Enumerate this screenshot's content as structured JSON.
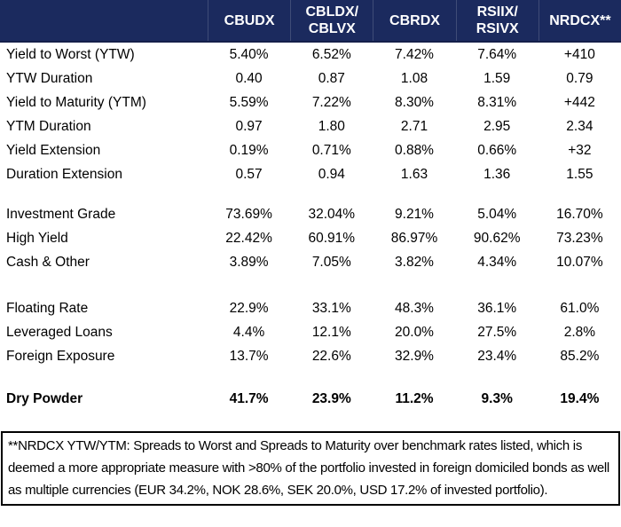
{
  "colors": {
    "header_bg": "#1B2A5E",
    "header_text": "#FFFFFF",
    "body_text": "#000000",
    "footnote_border": "#000000"
  },
  "table": {
    "columns": [
      {
        "line1": "CBUDX",
        "line2": ""
      },
      {
        "line1": "CBLDX/",
        "line2": "CBLVX"
      },
      {
        "line1": "CBRDX",
        "line2": ""
      },
      {
        "line1": "RSIIX/",
        "line2": "RSIVX"
      },
      {
        "line1": "NRDCX**",
        "line2": ""
      }
    ],
    "rows": [
      {
        "label": "Yield to Worst (YTW)",
        "values": [
          "5.40%",
          "6.52%",
          "7.42%",
          "7.64%",
          "+410"
        ]
      },
      {
        "label": "YTW Duration",
        "values": [
          "0.40",
          "0.87",
          "1.08",
          "1.59",
          "0.79"
        ]
      },
      {
        "label": "Yield to Maturity (YTM)",
        "values": [
          "5.59%",
          "7.22%",
          "8.30%",
          "8.31%",
          "+442"
        ]
      },
      {
        "label": "YTM Duration",
        "values": [
          "0.97",
          "1.80",
          "2.71",
          "2.95",
          "2.34"
        ]
      },
      {
        "label": "Yield Extension",
        "values": [
          "0.19%",
          "0.71%",
          "0.88%",
          "0.66%",
          "+32"
        ]
      },
      {
        "label": "Duration Extension",
        "values": [
          "0.57",
          "0.94",
          "1.63",
          "1.36",
          "1.55"
        ]
      },
      {
        "label": "Investment Grade",
        "values": [
          "73.69%",
          "32.04%",
          "9.21%",
          "5.04%",
          "16.70%"
        ]
      },
      {
        "label": "High Yield",
        "values": [
          "22.42%",
          "60.91%",
          "86.97%",
          "90.62%",
          "73.23%"
        ]
      },
      {
        "label": "Cash & Other",
        "values": [
          "3.89%",
          "7.05%",
          "3.82%",
          "4.34%",
          "10.07%"
        ]
      },
      {
        "label": "Floating Rate",
        "values": [
          "22.9%",
          "33.1%",
          "48.3%",
          "36.1%",
          "61.0%"
        ]
      },
      {
        "label": "Leveraged Loans",
        "values": [
          "4.4%",
          "12.1%",
          "20.0%",
          "27.5%",
          "2.8%"
        ]
      },
      {
        "label": "Foreign Exposure",
        "values": [
          "13.7%",
          "22.6%",
          "32.9%",
          "23.4%",
          "85.2%"
        ]
      },
      {
        "label": "Dry Powder",
        "values": [
          "41.7%",
          "23.9%",
          "11.2%",
          "9.3%",
          "19.4%"
        ]
      }
    ]
  },
  "footnote": {
    "text": "**NRDCX YTW/YTM: Spreads to Worst and Spreads to Maturity over benchmark rates listed, which is deemed a more appropriate measure with >80% of the portfolio invested in foreign domiciled bonds as well as multiple currencies (EUR 34.2%, NOK 28.6%, SEK 20.0%, USD 17.2% of invested portfolio)."
  }
}
